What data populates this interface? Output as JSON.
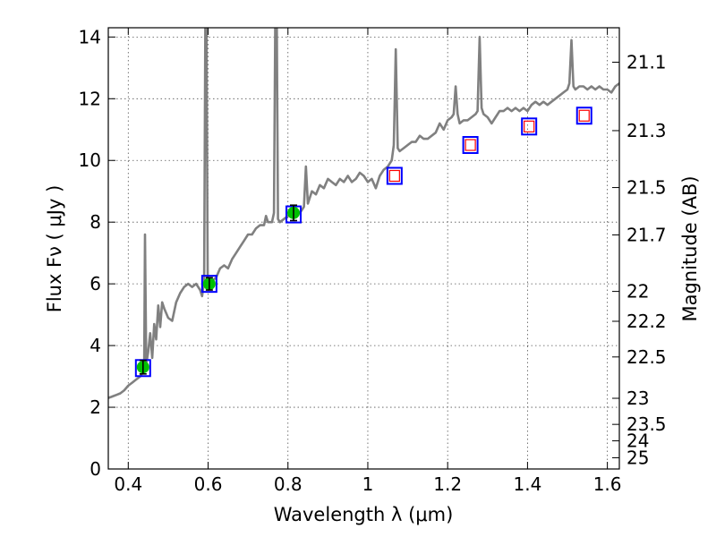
{
  "chart_data": {
    "type": "line",
    "xlabel": "Wavelength  λ (μm)",
    "ylabel": "Flux  Fν  ( μJy )",
    "y2label": "Magnitude (AB)",
    "xlim": [
      0.35,
      1.63
    ],
    "ylim": [
      0,
      14.3
    ],
    "grid": true,
    "x_ticks": [
      {
        "value": 0.4,
        "label": "0.4"
      },
      {
        "value": 0.6,
        "label": "0.6"
      },
      {
        "value": 0.8,
        "label": "0.8"
      },
      {
        "value": 1.0,
        "label": "1"
      },
      {
        "value": 1.2,
        "label": "1.2"
      },
      {
        "value": 1.4,
        "label": "1.4"
      },
      {
        "value": 1.6,
        "label": "1.6"
      }
    ],
    "y_ticks": [
      {
        "value": 0,
        "label": "0"
      },
      {
        "value": 2,
        "label": "2"
      },
      {
        "value": 4,
        "label": "4"
      },
      {
        "value": 6,
        "label": "6"
      },
      {
        "value": 8,
        "label": "8"
      },
      {
        "value": 10,
        "label": "10"
      },
      {
        "value": 12,
        "label": "12"
      },
      {
        "value": 14,
        "label": "14"
      }
    ],
    "mag_ticks": [
      {
        "value": 21.1,
        "label": "21.1"
      },
      {
        "value": 21.3,
        "label": "21.3"
      },
      {
        "value": 21.5,
        "label": "21.5"
      },
      {
        "value": 21.7,
        "label": "21.7"
      },
      {
        "value": 22.0,
        "label": "22"
      },
      {
        "value": 22.2,
        "label": "22.2"
      },
      {
        "value": 22.5,
        "label": "22.5"
      },
      {
        "value": 23.0,
        "label": "23"
      },
      {
        "value": 23.5,
        "label": "23.5"
      },
      {
        "value": 24.0,
        "label": "24"
      },
      {
        "value": 25.0,
        "label": "25"
      }
    ],
    "model_spectrum": {
      "color": "#808080",
      "points": [
        [
          0.35,
          2.3
        ],
        [
          0.36,
          2.35
        ],
        [
          0.37,
          2.4
        ],
        [
          0.38,
          2.45
        ],
        [
          0.39,
          2.55
        ],
        [
          0.4,
          2.7
        ],
        [
          0.41,
          2.8
        ],
        [
          0.42,
          2.9
        ],
        [
          0.43,
          3.0
        ],
        [
          0.435,
          3.1
        ],
        [
          0.44,
          3.3
        ],
        [
          0.442,
          7.6
        ],
        [
          0.445,
          3.4
        ],
        [
          0.45,
          3.8
        ],
        [
          0.455,
          4.4
        ],
        [
          0.46,
          3.6
        ],
        [
          0.465,
          4.7
        ],
        [
          0.47,
          4.2
        ],
        [
          0.475,
          5.3
        ],
        [
          0.48,
          4.6
        ],
        [
          0.485,
          5.4
        ],
        [
          0.49,
          5.2
        ],
        [
          0.5,
          4.9
        ],
        [
          0.51,
          4.8
        ],
        [
          0.52,
          5.4
        ],
        [
          0.53,
          5.7
        ],
        [
          0.54,
          5.9
        ],
        [
          0.55,
          6.0
        ],
        [
          0.56,
          5.9
        ],
        [
          0.57,
          6.0
        ],
        [
          0.58,
          5.8
        ],
        [
          0.585,
          5.6
        ],
        [
          0.59,
          6.1
        ],
        [
          0.593,
          14.3
        ],
        [
          0.596,
          14.3
        ],
        [
          0.599,
          6.0
        ],
        [
          0.605,
          6.0
        ],
        [
          0.61,
          6.1
        ],
        [
          0.62,
          6.2
        ],
        [
          0.63,
          6.5
        ],
        [
          0.64,
          6.6
        ],
        [
          0.65,
          6.5
        ],
        [
          0.66,
          6.8
        ],
        [
          0.67,
          7.0
        ],
        [
          0.68,
          7.2
        ],
        [
          0.69,
          7.4
        ],
        [
          0.7,
          7.6
        ],
        [
          0.71,
          7.6
        ],
        [
          0.72,
          7.8
        ],
        [
          0.73,
          7.9
        ],
        [
          0.74,
          7.9
        ],
        [
          0.745,
          8.2
        ],
        [
          0.75,
          8.0
        ],
        [
          0.76,
          8.0
        ],
        [
          0.765,
          8.3
        ],
        [
          0.768,
          14.3
        ],
        [
          0.772,
          14.3
        ],
        [
          0.775,
          8.1
        ],
        [
          0.78,
          8.0
        ],
        [
          0.79,
          8.1
        ],
        [
          0.8,
          8.2
        ],
        [
          0.81,
          8.3
        ],
        [
          0.82,
          8.4
        ],
        [
          0.83,
          8.3
        ],
        [
          0.84,
          8.5
        ],
        [
          0.845,
          9.8
        ],
        [
          0.85,
          8.6
        ],
        [
          0.86,
          9.0
        ],
        [
          0.87,
          8.9
        ],
        [
          0.88,
          9.2
        ],
        [
          0.89,
          9.1
        ],
        [
          0.9,
          9.4
        ],
        [
          0.91,
          9.3
        ],
        [
          0.92,
          9.2
        ],
        [
          0.93,
          9.4
        ],
        [
          0.94,
          9.3
        ],
        [
          0.95,
          9.5
        ],
        [
          0.96,
          9.3
        ],
        [
          0.97,
          9.4
        ],
        [
          0.98,
          9.6
        ],
        [
          0.99,
          9.5
        ],
        [
          1.0,
          9.3
        ],
        [
          1.01,
          9.4
        ],
        [
          1.02,
          9.1
        ],
        [
          1.03,
          9.5
        ],
        [
          1.04,
          9.7
        ],
        [
          1.05,
          9.8
        ],
        [
          1.06,
          10.0
        ],
        [
          1.065,
          10.5
        ],
        [
          1.07,
          13.6
        ],
        [
          1.075,
          10.4
        ],
        [
          1.08,
          10.3
        ],
        [
          1.09,
          10.4
        ],
        [
          1.1,
          10.5
        ],
        [
          1.11,
          10.6
        ],
        [
          1.12,
          10.6
        ],
        [
          1.13,
          10.8
        ],
        [
          1.14,
          10.7
        ],
        [
          1.15,
          10.7
        ],
        [
          1.16,
          10.8
        ],
        [
          1.17,
          10.9
        ],
        [
          1.18,
          11.2
        ],
        [
          1.19,
          11.0
        ],
        [
          1.2,
          11.3
        ],
        [
          1.21,
          11.4
        ],
        [
          1.215,
          11.5
        ],
        [
          1.22,
          12.4
        ],
        [
          1.225,
          11.5
        ],
        [
          1.23,
          11.2
        ],
        [
          1.24,
          11.3
        ],
        [
          1.25,
          11.3
        ],
        [
          1.26,
          11.4
        ],
        [
          1.27,
          11.5
        ],
        [
          1.275,
          11.6
        ],
        [
          1.28,
          14.0
        ],
        [
          1.285,
          11.7
        ],
        [
          1.29,
          11.5
        ],
        [
          1.3,
          11.4
        ],
        [
          1.31,
          11.2
        ],
        [
          1.32,
          11.4
        ],
        [
          1.33,
          11.6
        ],
        [
          1.34,
          11.6
        ],
        [
          1.35,
          11.7
        ],
        [
          1.36,
          11.6
        ],
        [
          1.37,
          11.7
        ],
        [
          1.38,
          11.6
        ],
        [
          1.39,
          11.7
        ],
        [
          1.4,
          11.6
        ],
        [
          1.41,
          11.8
        ],
        [
          1.42,
          11.9
        ],
        [
          1.43,
          11.8
        ],
        [
          1.44,
          11.9
        ],
        [
          1.45,
          11.8
        ],
        [
          1.46,
          11.9
        ],
        [
          1.47,
          12.0
        ],
        [
          1.48,
          12.1
        ],
        [
          1.49,
          12.2
        ],
        [
          1.5,
          12.3
        ],
        [
          1.505,
          12.5
        ],
        [
          1.51,
          13.9
        ],
        [
          1.515,
          12.4
        ],
        [
          1.52,
          12.3
        ],
        [
          1.53,
          12.4
        ],
        [
          1.54,
          12.4
        ],
        [
          1.55,
          12.3
        ],
        [
          1.56,
          12.4
        ],
        [
          1.57,
          12.3
        ],
        [
          1.58,
          12.4
        ],
        [
          1.59,
          12.3
        ],
        [
          1.6,
          12.3
        ],
        [
          1.61,
          12.2
        ],
        [
          1.62,
          12.4
        ],
        [
          1.63,
          12.5
        ]
      ]
    },
    "model_photometry": [
      {
        "x": 0.437,
        "y": 3.27
      },
      {
        "x": 0.603,
        "y": 6.0
      },
      {
        "x": 0.814,
        "y": 8.25
      },
      {
        "x": 1.067,
        "y": 9.5
      },
      {
        "x": 1.257,
        "y": 10.5
      },
      {
        "x": 1.404,
        "y": 11.1
      },
      {
        "x": 1.542,
        "y": 11.45
      }
    ],
    "detections": [
      {
        "x": 0.437,
        "y": 3.3,
        "err": 0.22
      },
      {
        "x": 0.603,
        "y": 6.0,
        "err": 0.2
      },
      {
        "x": 0.814,
        "y": 8.3,
        "err": 0.25
      }
    ],
    "nondetections": [
      {
        "x": 1.067,
        "y": 9.5
      },
      {
        "x": 1.257,
        "y": 10.5
      },
      {
        "x": 1.404,
        "y": 11.1
      },
      {
        "x": 1.542,
        "y": 11.45
      }
    ],
    "colors": {
      "spectrum": "#808080",
      "model_box": "#0000ff",
      "detection_fill": "#00c000",
      "nondetection_box": "#ff0000",
      "errorbar": "#000000"
    }
  }
}
